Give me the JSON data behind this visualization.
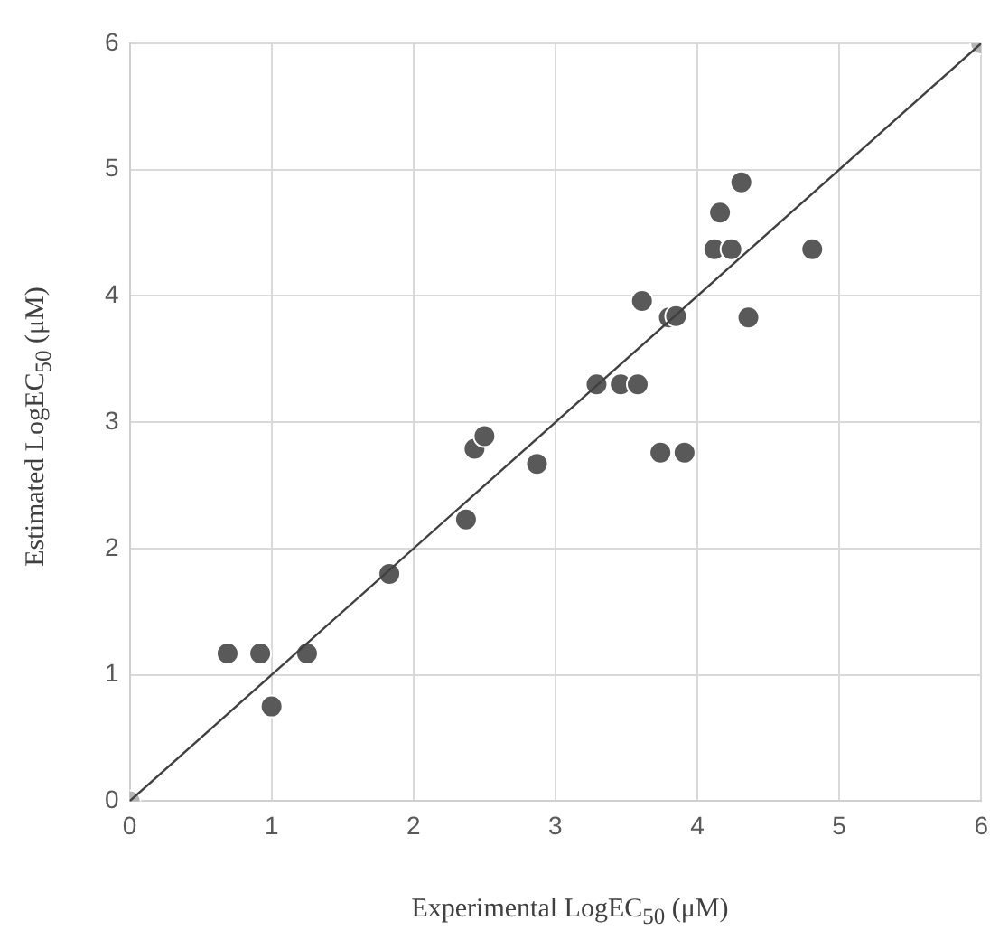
{
  "chart_data": {
    "type": "scatter",
    "xlabel": "Experimental LogEC$_{50}$ (μM)",
    "ylabel": "Estimated LogEC$_{50}$ (μM)",
    "xlim": [
      0,
      6
    ],
    "ylim": [
      0,
      6
    ],
    "xticks": [
      0,
      1,
      2,
      3,
      4,
      5,
      6
    ],
    "yticks": [
      0,
      1,
      2,
      3,
      4,
      5,
      6
    ],
    "grid": true,
    "marker": "circle",
    "series": [
      {
        "type": "scatter",
        "color": "#595959",
        "x": [
          0.69,
          0.92,
          1.25,
          1.0,
          1.83,
          2.37,
          2.43,
          2.5,
          2.87,
          3.29,
          3.46,
          3.58,
          3.74,
          3.91,
          3.61,
          3.8,
          3.85,
          4.12,
          4.24,
          4.16,
          4.31,
          4.36,
          4.81
        ],
        "values": [
          1.17,
          1.17,
          1.17,
          0.75,
          1.8,
          2.23,
          2.79,
          2.89,
          2.67,
          3.3,
          3.3,
          3.3,
          2.76,
          2.76,
          3.96,
          3.83,
          3.84,
          4.37,
          4.37,
          4.66,
          4.9,
          3.83,
          4.37
        ]
      },
      {
        "type": "line",
        "color": "#404040",
        "marker": "none",
        "x": [
          0,
          6
        ],
        "values": [
          0,
          6
        ]
      },
      {
        "type": "scatter",
        "color": "#b4b4b4",
        "x": [
          0,
          6
        ],
        "values": [
          0,
          6
        ]
      }
    ]
  }
}
